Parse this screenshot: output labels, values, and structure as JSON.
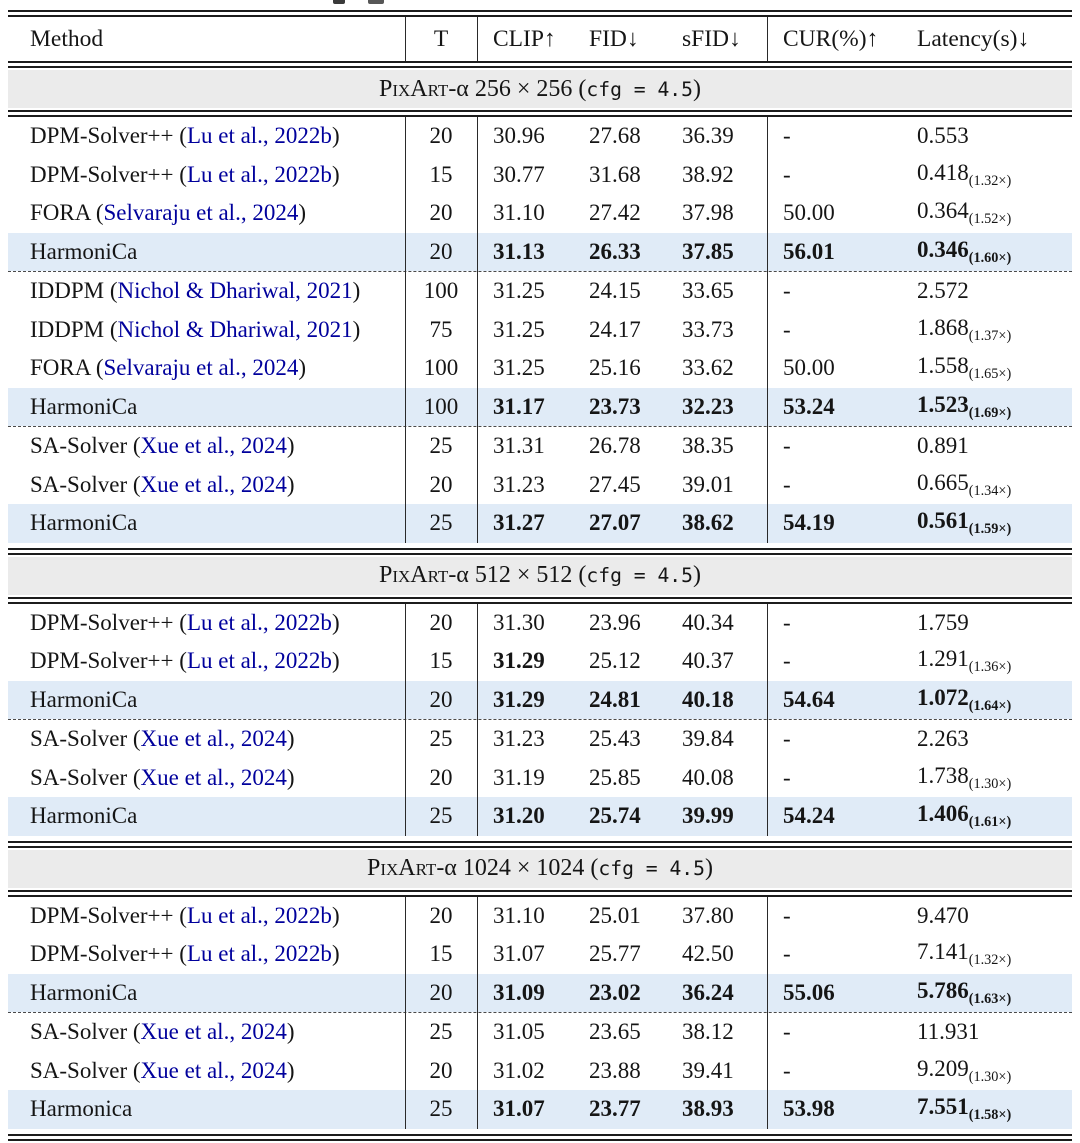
{
  "colors": {
    "link_blue": "#00009c",
    "highlight_row": "#e0ebf7",
    "section_band": "#ebebeb",
    "rule": "#1c1c1c"
  },
  "table": {
    "columns": [
      "Method",
      "T",
      "CLIP↑",
      "FID↓",
      "sFID↓",
      "CUR(%)↑",
      "Latency(s)↓"
    ],
    "sections": [
      {
        "title": {
          "sc": "PixArt",
          "mid": "-α 256 × 256 (",
          "mono": "cfg = 4.5",
          "tail": ")"
        },
        "groups": [
          [
            {
              "method": "DPM-Solver++",
              "cite": "Lu et al., 2022b",
              "t": "20",
              "clip": "30.96",
              "fid": "27.68",
              "sfid": "36.39",
              "cur": "-",
              "lat": "0.553",
              "lat_sub": null,
              "hl": false,
              "em": []
            },
            {
              "method": "DPM-Solver++",
              "cite": "Lu et al., 2022b",
              "t": "15",
              "clip": "30.77",
              "fid": "31.68",
              "sfid": "38.92",
              "cur": "-",
              "lat": "0.418",
              "lat_sub": "(1.32×)",
              "hl": false,
              "em": []
            },
            {
              "method": "FORA",
              "cite": "Selvaraju et al., 2024",
              "t": "20",
              "clip": "31.10",
              "fid": "27.42",
              "sfid": "37.98",
              "cur": "50.00",
              "lat": "0.364",
              "lat_sub": "(1.52×)",
              "hl": false,
              "em": []
            },
            {
              "method": "HarmoniCa",
              "cite": null,
              "t": "20",
              "clip": "31.13",
              "fid": "26.33",
              "sfid": "37.85",
              "cur": "56.01",
              "lat": "0.346",
              "lat_sub": "(1.60×)",
              "hl": true,
              "em": [
                "clip",
                "fid",
                "sfid",
                "cur",
                "lat"
              ]
            }
          ],
          [
            {
              "method": "IDDPM",
              "cite": "Nichol & Dhariwal, 2021",
              "t": "100",
              "clip": "31.25",
              "fid": "24.15",
              "sfid": "33.65",
              "cur": "-",
              "lat": "2.572",
              "lat_sub": null,
              "hl": false,
              "em": []
            },
            {
              "method": "IDDPM",
              "cite": "Nichol & Dhariwal, 2021",
              "t": "75",
              "clip": "31.25",
              "fid": "24.17",
              "sfid": "33.73",
              "cur": "-",
              "lat": "1.868",
              "lat_sub": "(1.37×)",
              "hl": false,
              "em": []
            },
            {
              "method": "FORA",
              "cite": "Selvaraju et al., 2024",
              "t": "100",
              "clip": "31.25",
              "fid": "25.16",
              "sfid": "33.62",
              "cur": "50.00",
              "lat": "1.558",
              "lat_sub": "(1.65×)",
              "hl": false,
              "em": []
            },
            {
              "method": "HarmoniCa",
              "cite": null,
              "t": "100",
              "clip": "31.17",
              "fid": "23.73",
              "sfid": "32.23",
              "cur": "53.24",
              "lat": "1.523",
              "lat_sub": "(1.69×)",
              "hl": true,
              "em": [
                "clip",
                "fid",
                "sfid",
                "cur",
                "lat"
              ]
            }
          ],
          [
            {
              "method": "SA-Solver",
              "cite": "Xue et al., 2024",
              "t": "25",
              "clip": "31.31",
              "fid": "26.78",
              "sfid": "38.35",
              "cur": "-",
              "lat": "0.891",
              "lat_sub": null,
              "hl": false,
              "em": []
            },
            {
              "method": "SA-Solver",
              "cite": "Xue et al., 2024",
              "t": "20",
              "clip": "31.23",
              "fid": "27.45",
              "sfid": "39.01",
              "cur": "-",
              "lat": "0.665",
              "lat_sub": "(1.34×)",
              "hl": false,
              "em": []
            },
            {
              "method": "HarmoniCa",
              "cite": null,
              "t": "25",
              "clip": "31.27",
              "fid": "27.07",
              "sfid": "38.62",
              "cur": "54.19",
              "lat": "0.561",
              "lat_sub": "(1.59×)",
              "hl": true,
              "em": [
                "clip",
                "fid",
                "sfid",
                "cur",
                "lat"
              ]
            }
          ]
        ]
      },
      {
        "title": {
          "sc": "PixArt",
          "mid": "-α 512 × 512 (",
          "mono": "cfg = 4.5",
          "tail": ")"
        },
        "groups": [
          [
            {
              "method": "DPM-Solver++",
              "cite": "Lu et al., 2022b",
              "t": "20",
              "clip": "31.30",
              "fid": "23.96",
              "sfid": "40.34",
              "cur": "-",
              "lat": "1.759",
              "lat_sub": null,
              "hl": false,
              "em": []
            },
            {
              "method": "DPM-Solver++",
              "cite": "Lu et al., 2022b",
              "t": "15",
              "clip": "31.29",
              "fid": "25.12",
              "sfid": "40.37",
              "cur": "-",
              "lat": "1.291",
              "lat_sub": "(1.36×)",
              "hl": false,
              "em": [
                "clip"
              ]
            },
            {
              "method": "HarmoniCa",
              "cite": null,
              "t": "20",
              "clip": "31.29",
              "fid": "24.81",
              "sfid": "40.18",
              "cur": "54.64",
              "lat": "1.072",
              "lat_sub": "(1.64×)",
              "hl": true,
              "em": [
                "clip",
                "fid",
                "sfid",
                "cur",
                "lat"
              ]
            }
          ],
          [
            {
              "method": "SA-Solver",
              "cite": "Xue et al., 2024",
              "t": "25",
              "clip": "31.23",
              "fid": "25.43",
              "sfid": "39.84",
              "cur": "-",
              "lat": "2.263",
              "lat_sub": null,
              "hl": false,
              "em": []
            },
            {
              "method": "SA-Solver",
              "cite": "Xue et al., 2024",
              "t": "20",
              "clip": "31.19",
              "fid": "25.85",
              "sfid": "40.08",
              "cur": "-",
              "lat": "1.738",
              "lat_sub": "(1.30×)",
              "hl": false,
              "em": []
            },
            {
              "method": "HarmoniCa",
              "cite": null,
              "t": "25",
              "clip": "31.20",
              "fid": "25.74",
              "sfid": "39.99",
              "cur": "54.24",
              "lat": "1.406",
              "lat_sub": "(1.61×)",
              "hl": true,
              "em": [
                "clip",
                "fid",
                "sfid",
                "cur",
                "lat"
              ]
            }
          ]
        ]
      },
      {
        "title": {
          "sc": "PixArt",
          "mid": "-α 1024 × 1024 (",
          "mono": "cfg = 4.5",
          "tail": ")"
        },
        "groups": [
          [
            {
              "method": "DPM-Solver++",
              "cite": "Lu et al., 2022b",
              "t": "20",
              "clip": "31.10",
              "fid": "25.01",
              "sfid": "37.80",
              "cur": "-",
              "lat": "9.470",
              "lat_sub": null,
              "hl": false,
              "em": []
            },
            {
              "method": "DPM-Solver++",
              "cite": "Lu et al., 2022b",
              "t": "15",
              "clip": "31.07",
              "fid": "25.77",
              "sfid": "42.50",
              "cur": "-",
              "lat": "7.141",
              "lat_sub": "(1.32×)",
              "hl": false,
              "em": []
            },
            {
              "method": "HarmoniCa",
              "cite": null,
              "t": "20",
              "clip": "31.09",
              "fid": "23.02",
              "sfid": "36.24",
              "cur": "55.06",
              "lat": "5.786",
              "lat_sub": "(1.63×)",
              "hl": true,
              "em": [
                "clip",
                "fid",
                "sfid",
                "cur",
                "lat"
              ]
            }
          ],
          [
            {
              "method": "SA-Solver",
              "cite": "Xue et al., 2024",
              "t": "25",
              "clip": "31.05",
              "fid": "23.65",
              "sfid": "38.12",
              "cur": "-",
              "lat": "11.931",
              "lat_sub": null,
              "hl": false,
              "em": []
            },
            {
              "method": "SA-Solver",
              "cite": "Xue et al., 2024",
              "t": "20",
              "clip": "31.02",
              "fid": "23.88",
              "sfid": "39.41",
              "cur": "-",
              "lat": "9.209",
              "lat_sub": "(1.30×)",
              "hl": false,
              "em": []
            },
            {
              "method": "Harmonica",
              "cite": null,
              "t": "25",
              "clip": "31.07",
              "fid": "23.77",
              "sfid": "38.93",
              "cur": "53.98",
              "lat": "7.551",
              "lat_sub": "(1.58×)",
              "hl": true,
              "em": [
                "clip",
                "fid",
                "sfid",
                "cur",
                "lat"
              ]
            }
          ]
        ]
      }
    ]
  }
}
